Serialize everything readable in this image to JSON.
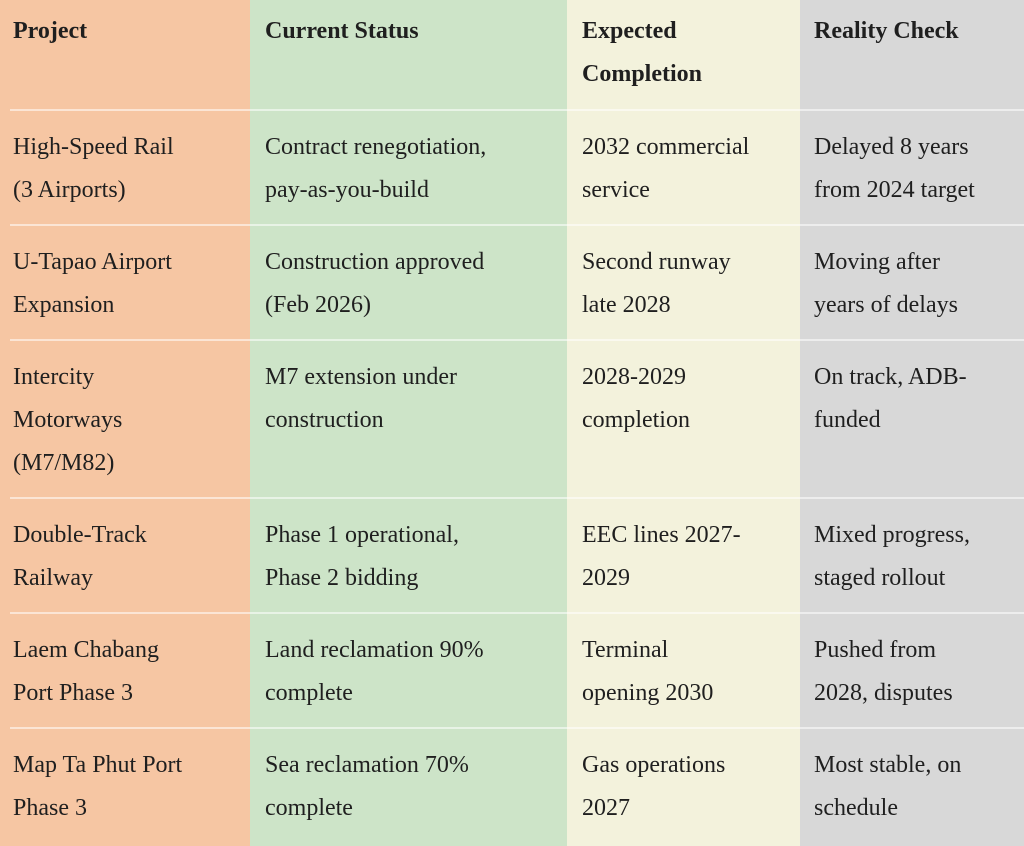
{
  "table": {
    "header": [
      [
        "Project"
      ],
      [
        "Current Status"
      ],
      [
        "Expected",
        "Completion"
      ],
      [
        "Reality Check"
      ]
    ],
    "rows": [
      [
        [
          "High-Speed Rail",
          "(3 Airports)"
        ],
        [
          "Contract renegotiation,",
          "pay-as-you-build"
        ],
        [
          "2032 commercial",
          "service"
        ],
        [
          "Delayed 8 years",
          "from 2024 target"
        ]
      ],
      [
        [
          "U-Tapao Airport",
          "Expansion"
        ],
        [
          "Construction approved",
          "(Feb 2026)"
        ],
        [
          "Second runway",
          "late 2028"
        ],
        [
          "Moving after",
          "years of delays"
        ]
      ],
      [
        [
          "Intercity",
          "Motorways",
          "(M7/M82)"
        ],
        [
          "M7 extension under",
          "construction"
        ],
        [
          "2028-2029",
          "completion"
        ],
        [
          "On track, ADB-",
          "funded"
        ]
      ],
      [
        [
          "Double-Track",
          "Railway"
        ],
        [
          "Phase 1 operational,",
          "Phase 2 bidding"
        ],
        [
          "EEC lines 2027-",
          "2029"
        ],
        [
          "Mixed progress,",
          "staged rollout"
        ]
      ],
      [
        [
          "Laem Chabang",
          "Port Phase 3"
        ],
        [
          "Land reclamation 90%",
          "complete"
        ],
        [
          "Terminal",
          "opening 2030"
        ],
        [
          "Pushed from",
          "2028, disputes"
        ]
      ],
      [
        [
          "Map Ta Phut Port",
          "Phase 3"
        ],
        [
          "Sea reclamation 70%",
          "complete"
        ],
        [
          "Gas operations",
          "2027"
        ],
        [
          "Most stable, on",
          "schedule"
        ]
      ]
    ]
  }
}
